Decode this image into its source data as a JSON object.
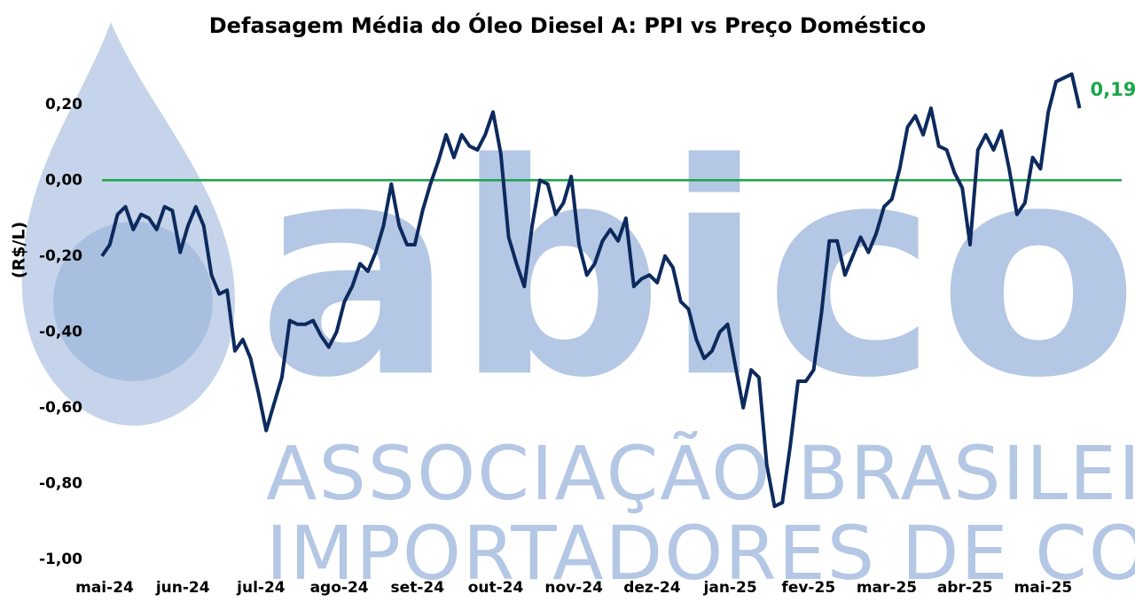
{
  "chart_data": {
    "type": "line",
    "title": "Defasagem Média do Óleo Diesel A: PPI vs Preço Doméstico",
    "ylabel": "(R$/L)",
    "watermark": {
      "name": "abicom",
      "lines": [
        "ASSOCIAÇÃO BRASILEIRA DOS",
        "IMPORTADORES DE COMBUSTÍVEIS"
      ],
      "color": "#b4c7e4"
    },
    "categories": [
      "mai-24",
      null,
      null,
      null,
      null,
      null,
      null,
      null,
      null,
      null,
      "jun-24",
      null,
      null,
      null,
      null,
      null,
      null,
      null,
      null,
      null,
      "jul-24",
      null,
      null,
      null,
      null,
      null,
      null,
      null,
      null,
      null,
      "ago-24",
      null,
      null,
      null,
      null,
      null,
      null,
      null,
      null,
      null,
      "set-24",
      null,
      null,
      null,
      null,
      null,
      null,
      null,
      null,
      null,
      "out-24",
      null,
      null,
      null,
      null,
      null,
      null,
      null,
      null,
      null,
      "nov-24",
      null,
      null,
      null,
      null,
      null,
      null,
      null,
      null,
      null,
      "dez-24",
      null,
      null,
      null,
      null,
      null,
      null,
      null,
      null,
      null,
      "jan-25",
      null,
      null,
      null,
      null,
      null,
      null,
      null,
      null,
      null,
      "fev-25",
      null,
      null,
      null,
      null,
      null,
      null,
      null,
      null,
      null,
      "mar-25",
      null,
      null,
      null,
      null,
      null,
      null,
      null,
      null,
      null,
      "abr-25",
      null,
      null,
      null,
      null,
      null,
      null,
      null,
      null,
      null,
      "mai-25",
      null,
      null,
      null,
      null,
      null
    ],
    "series": [
      {
        "name": "Defasagem",
        "color": "#0d2a5e",
        "values": [
          -0.2,
          -0.17,
          -0.09,
          -0.07,
          -0.13,
          -0.09,
          -0.1,
          -0.13,
          -0.07,
          -0.08,
          -0.19,
          -0.12,
          -0.07,
          -0.12,
          -0.25,
          -0.3,
          -0.29,
          -0.45,
          -0.42,
          -0.47,
          -0.56,
          -0.66,
          -0.59,
          -0.52,
          -0.37,
          -0.38,
          -0.38,
          -0.37,
          -0.41,
          -0.44,
          -0.4,
          -0.32,
          -0.28,
          -0.22,
          -0.24,
          -0.19,
          -0.12,
          -0.01,
          -0.12,
          -0.17,
          -0.17,
          -0.08,
          -0.01,
          0.05,
          0.12,
          0.06,
          0.12,
          0.09,
          0.08,
          0.12,
          0.18,
          0.07,
          -0.15,
          -0.22,
          -0.28,
          -0.12,
          0.0,
          -0.01,
          -0.09,
          -0.06,
          0.01,
          -0.17,
          -0.25,
          -0.22,
          -0.16,
          -0.13,
          -0.16,
          -0.1,
          -0.28,
          -0.26,
          -0.25,
          -0.27,
          -0.2,
          -0.23,
          -0.32,
          -0.34,
          -0.42,
          -0.47,
          -0.45,
          -0.4,
          -0.38,
          -0.49,
          -0.6,
          -0.5,
          -0.52,
          -0.75,
          -0.86,
          -0.85,
          -0.7,
          -0.53,
          -0.53,
          -0.5,
          -0.35,
          -0.16,
          -0.16,
          -0.25,
          -0.2,
          -0.15,
          -0.19,
          -0.14,
          -0.07,
          -0.05,
          0.03,
          0.14,
          0.17,
          0.12,
          0.19,
          0.09,
          0.08,
          0.02,
          -0.02,
          -0.17,
          0.08,
          0.12,
          0.08,
          0.13,
          0.03,
          -0.09,
          -0.06,
          0.06,
          0.03,
          0.18,
          0.26,
          0.27,
          0.28,
          0.19
        ]
      }
    ],
    "annotation": {
      "text": "0,19",
      "color": "#1aa64a"
    },
    "reference_line": {
      "value": 0,
      "color": "#1aa64a"
    },
    "ylim": [
      -1.0,
      0.3
    ],
    "yticks": [
      {
        "value": -1.0,
        "label": "-1,00"
      },
      {
        "value": -0.8,
        "label": "-0,80"
      },
      {
        "value": -0.6,
        "label": "-0,60"
      },
      {
        "value": -0.4,
        "label": "-0,40"
      },
      {
        "value": -0.2,
        "label": "-0,20"
      },
      {
        "value": 0,
        "label": "0,00"
      },
      {
        "value": 0.2,
        "label": "0,20"
      }
    ],
    "grid": false
  }
}
